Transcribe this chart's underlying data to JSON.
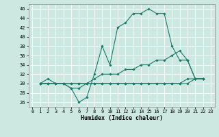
{
  "xlabel": "Humidex (Indice chaleur)",
  "bg_color": "#cce8e0",
  "grid_color": "#ffffff",
  "line_color": "#1a7a6a",
  "xlim": [
    -0.5,
    23.5
  ],
  "ylim": [
    25,
    47
  ],
  "xticks": [
    0,
    1,
    2,
    3,
    4,
    5,
    6,
    7,
    8,
    9,
    10,
    11,
    12,
    13,
    14,
    15,
    16,
    17,
    18,
    19,
    20,
    21,
    22,
    23
  ],
  "yticks": [
    26,
    28,
    30,
    32,
    34,
    36,
    38,
    40,
    42,
    44,
    46
  ],
  "series": [
    [
      30,
      31,
      30,
      30,
      29,
      26,
      27,
      32,
      38,
      34,
      42,
      43,
      45,
      45,
      46,
      45,
      45,
      38,
      35,
      35,
      31,
      31
    ],
    [
      30,
      30,
      30,
      30,
      29,
      29,
      30,
      31,
      32,
      32,
      32,
      33,
      33,
      34,
      34,
      35,
      35,
      36,
      37,
      35,
      31,
      31
    ],
    [
      30,
      30,
      30,
      30,
      30,
      30,
      30,
      30,
      30,
      30,
      30,
      30,
      30,
      30,
      30,
      30,
      30,
      30,
      30,
      31,
      31,
      31
    ],
    [
      30,
      30,
      30,
      30,
      30,
      30,
      30,
      30,
      30,
      30,
      30,
      30,
      30,
      30,
      30,
      30,
      30,
      30,
      30,
      30,
      31,
      31
    ]
  ],
  "x_start": 1,
  "marker": "D",
  "markersize": 1.8,
  "linewidth": 0.8,
  "xlabel_fontsize": 6.0,
  "tick_fontsize": 5.0
}
